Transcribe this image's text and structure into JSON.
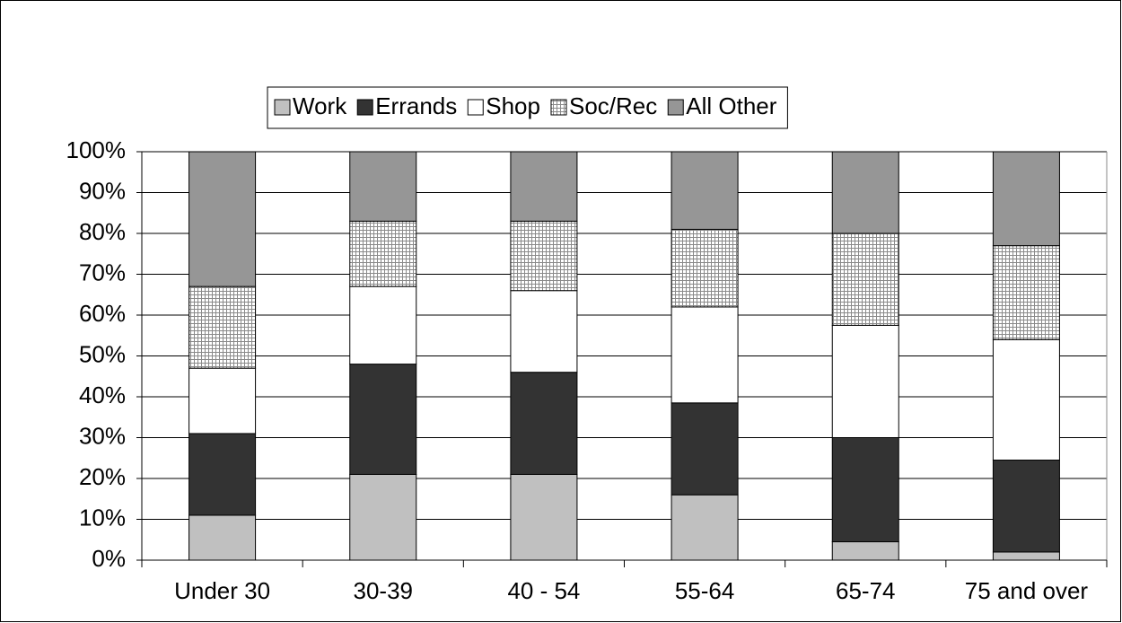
{
  "chart_data": {
    "type": "stacked_bar",
    "categories": [
      "Under 30",
      "30-39",
      "40 - 54",
      "55-64",
      "65-74",
      "75 and over"
    ],
    "series": [
      {
        "name": "Work",
        "color": "#c0c0c0",
        "values": [
          11,
          21,
          21,
          16,
          4.5,
          2
        ]
      },
      {
        "name": "Errands",
        "color": "#333333",
        "values": [
          20,
          27,
          25,
          22.5,
          25.5,
          22.5
        ]
      },
      {
        "name": "Shop",
        "color": "#ffffff",
        "values": [
          16,
          19,
          20,
          23.5,
          27.5,
          29.5
        ]
      },
      {
        "name": "Soc/Rec",
        "color": "#9a9a9a",
        "pattern": "grid",
        "values": [
          20,
          16,
          17,
          19,
          22.5,
          23
        ]
      },
      {
        "name": "All Other",
        "color": "#969696",
        "values": [
          33,
          17,
          17,
          19,
          20,
          23
        ]
      }
    ],
    "ylim": [
      0,
      100
    ],
    "yticks": [
      {
        "value": 0,
        "label": "0%"
      },
      {
        "value": 10,
        "label": "10%"
      },
      {
        "value": 20,
        "label": "20%"
      },
      {
        "value": 30,
        "label": "30%"
      },
      {
        "value": 40,
        "label": "40%"
      },
      {
        "value": 50,
        "label": "50%"
      },
      {
        "value": 60,
        "label": "60%"
      },
      {
        "value": 70,
        "label": "70%"
      },
      {
        "value": 80,
        "label": "80%"
      },
      {
        "value": 90,
        "label": "90%"
      },
      {
        "value": 100,
        "label": "100%"
      }
    ],
    "grid": true,
    "legend": "top"
  }
}
